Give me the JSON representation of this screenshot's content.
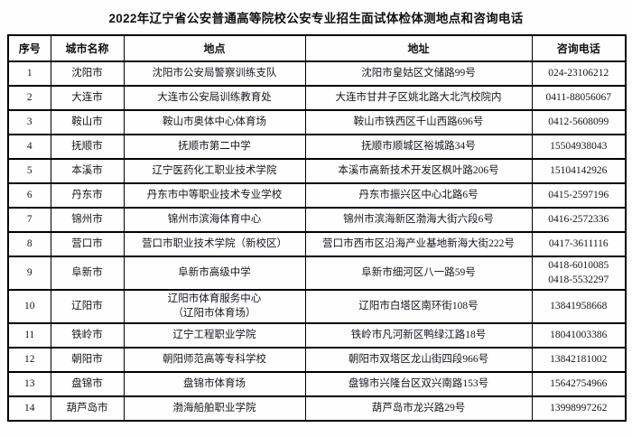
{
  "title": "2022年辽宁省公安普通高等院校公安专业招生面试体检体测地点和咨询电话",
  "table": {
    "headers": [
      "序号",
      "城市名称",
      "地点",
      "地址",
      "咨询电话"
    ],
    "rows": [
      {
        "no": "1",
        "city": "沈阳市",
        "location": "沈阳市公安局警察训练支队",
        "address": "沈阳市皇姑区文储路99号",
        "phone": "024-23106212"
      },
      {
        "no": "2",
        "city": "大连市",
        "location": "大连市公安局训练教育处",
        "address": "大连市甘井子区姚北路大北汽校院内",
        "phone": "0411-88056067"
      },
      {
        "no": "3",
        "city": "鞍山市",
        "location": "鞍山市奥体中心体育场",
        "address": "鞍山市铁西区千山西路696号",
        "phone": "0412-5608099"
      },
      {
        "no": "4",
        "city": "抚顺市",
        "location": "抚顺市第二中学",
        "address": "抚顺市顺城区裕城路34号",
        "phone": "15504938043"
      },
      {
        "no": "5",
        "city": "本溪市",
        "location": "辽宁医药化工职业技术学院",
        "address": "本溪市高新技术开发区枫叶路206号",
        "phone": "15104142926"
      },
      {
        "no": "6",
        "city": "丹东市",
        "location": "丹东市中等职业技术专业学校",
        "address": "丹东市振兴区中心北路6号",
        "phone": "0415-2597196"
      },
      {
        "no": "7",
        "city": "锦州市",
        "location": "锦州市滨海体育中心",
        "address": "锦州市滨海新区渤海大街六段6号",
        "phone": "0416-2572336"
      },
      {
        "no": "8",
        "city": "营口市",
        "location": "营口市职业技术学院（新校区）",
        "address": "营口市西市区沿海产业基地新海大街222号",
        "phone": "0417-3611116"
      },
      {
        "no": "9",
        "city": "阜新市",
        "location": "阜新市高级中学",
        "address": "阜新市细河区八一路59号",
        "phone": "0418-6010085\n0418-5532297"
      },
      {
        "no": "10",
        "city": "辽阳市",
        "location": "辽阳市体育服务中心\n（辽阳市体育场）",
        "address": "辽阳市白塔区南环街108号",
        "phone": "13841958668"
      },
      {
        "no": "11",
        "city": "铁岭市",
        "location": "辽宁工程职业学院",
        "address": "铁岭市凡河新区鸭绿江路18号",
        "phone": "18041003386"
      },
      {
        "no": "12",
        "city": "朝阳市",
        "location": "朝阳师范高等专科学校",
        "address": "朝阳市双塔区龙山街四段966号",
        "phone": "13842181002"
      },
      {
        "no": "13",
        "city": "盘锦市",
        "location": "盘锦市体育场",
        "address": "盘锦市兴隆台区双兴南路153号",
        "phone": "15642754966"
      },
      {
        "no": "14",
        "city": "葫芦岛市",
        "location": "渤海船舶职业学院",
        "address": "葫芦岛市龙兴路29号",
        "phone": "13998997262"
      }
    ]
  }
}
